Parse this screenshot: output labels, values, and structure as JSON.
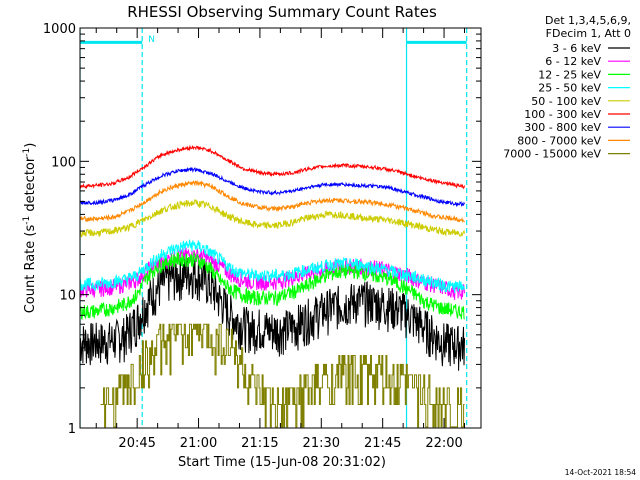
{
  "chart_data": {
    "type": "line",
    "title": "RHESSI Observing Summary Count Rates",
    "xlabel": "Start Time (15-Jun-08 20:31:02)",
    "ylabel_main": "Count Rate (s",
    "ylabel_sup1": "-1",
    "ylabel_mid": " detector",
    "ylabel_sup2": "-1",
    "ylabel_end": ")",
    "yscale": "log",
    "ylim": [
      1,
      1000
    ],
    "xlim_minutes": [
      0,
      98
    ],
    "x_ticks": [
      {
        "label": "20:45",
        "min": 13.97
      },
      {
        "label": "21:00",
        "min": 28.97
      },
      {
        "label": "21:15",
        "min": 43.97
      },
      {
        "label": "21:30",
        "min": 58.97
      },
      {
        "label": "21:45",
        "min": 73.97
      },
      {
        "label": "22:00",
        "min": 88.97
      }
    ],
    "y_ticks": [
      {
        "label": "1000",
        "v": 1000
      },
      {
        "label": "100",
        "v": 100
      },
      {
        "label": "10",
        "v": 10
      },
      {
        "label": "1",
        "v": 1
      }
    ],
    "legend_header": [
      "Det 1,3,4,5,6,9,",
      "FDecim 1, Att 0"
    ],
    "flag_label": "N",
    "timestamp": "14-Oct-2021 18:54",
    "night_intervals_minutes": [
      [
        0,
        15.2
      ],
      [
        79.8,
        94.5
      ]
    ],
    "flag_level": 780,
    "series": [
      {
        "name": "3 - 6 keV",
        "color": "#000000",
        "x": [
          0,
          4,
          8,
          11,
          14,
          16,
          18,
          20,
          22,
          24,
          26,
          28,
          30,
          32,
          34,
          36,
          38,
          40,
          42,
          44,
          46,
          48,
          50,
          52,
          54,
          56,
          58,
          60,
          62,
          64,
          66,
          68,
          70,
          72,
          74,
          76,
          78,
          80,
          82,
          84,
          86,
          88,
          90,
          92,
          94
        ],
        "y": [
          4.5,
          4.5,
          4.6,
          5.0,
          6.5,
          8.5,
          10.5,
          12,
          13.5,
          14,
          14.5,
          14.5,
          13.5,
          11.5,
          9.5,
          7.8,
          6.5,
          6.0,
          5.6,
          5.8,
          5.6,
          5.5,
          5.6,
          5.8,
          6.3,
          6.8,
          7.3,
          7.8,
          8.3,
          8.6,
          8.9,
          9.1,
          9.1,
          8.9,
          8.6,
          8.3,
          7.9,
          7.3,
          6.5,
          5.8,
          5.2,
          4.6,
          4.4,
          4.3,
          4.3
        ]
      },
      {
        "name": "6 - 12 keV",
        "color": "#ff00ff",
        "x": [
          0,
          4,
          8,
          11,
          14,
          16,
          18,
          20,
          22,
          24,
          26,
          28,
          30,
          32,
          34,
          36,
          38,
          40,
          42,
          44,
          46,
          48,
          50,
          52,
          54,
          56,
          58,
          60,
          62,
          64,
          66,
          68,
          70,
          72,
          74,
          76,
          78,
          80,
          82,
          84,
          86,
          88,
          90,
          92,
          94
        ],
        "y": [
          11,
          11,
          11.5,
          12,
          13,
          15,
          16.5,
          17.5,
          18.5,
          19.5,
          20,
          20,
          19.5,
          18,
          16.5,
          15,
          13.5,
          13,
          12.5,
          12.5,
          12.5,
          12.5,
          13,
          13.5,
          14,
          14.5,
          15,
          15.5,
          16,
          16.5,
          16.5,
          16.5,
          16,
          16,
          15.5,
          15,
          14.5,
          14,
          13,
          12.5,
          12,
          11.5,
          11,
          10.5,
          10.5
        ]
      },
      {
        "name": "12 - 25 keV",
        "color": "#00ff00",
        "x": [
          0,
          4,
          8,
          11,
          14,
          16,
          18,
          20,
          22,
          24,
          26,
          28,
          30,
          32,
          34,
          36,
          38,
          40,
          42,
          44,
          46,
          48,
          50,
          52,
          54,
          56,
          58,
          60,
          62,
          64,
          66,
          68,
          70,
          72,
          74,
          76,
          78,
          80,
          82,
          84,
          86,
          88,
          90,
          92,
          94
        ],
        "y": [
          7.5,
          7.5,
          8,
          8.5,
          10,
          13,
          15.5,
          17,
          18,
          18.5,
          18.5,
          18.5,
          17.5,
          15.5,
          13,
          11.5,
          10.5,
          10,
          9.5,
          9.5,
          9.5,
          9.5,
          10,
          10.5,
          11,
          12,
          13,
          14,
          14.5,
          15,
          15,
          15,
          14.5,
          14,
          13.5,
          13,
          12,
          11,
          10,
          9,
          8.5,
          8,
          7.8,
          7.5,
          7.5
        ]
      },
      {
        "name": "25 - 50 keV",
        "color": "#00ffff",
        "x": [
          0,
          4,
          8,
          11,
          14,
          16,
          18,
          20,
          22,
          24,
          26,
          28,
          30,
          32,
          34,
          36,
          38,
          40,
          42,
          44,
          46,
          48,
          50,
          52,
          54,
          56,
          58,
          60,
          62,
          64,
          66,
          68,
          70,
          72,
          74,
          76,
          78,
          80,
          82,
          84,
          86,
          88,
          90,
          92,
          94
        ],
        "y": [
          12,
          12,
          12.5,
          13,
          14,
          16,
          18,
          20,
          21.5,
          22.5,
          23.5,
          23.5,
          22.5,
          20.5,
          18.5,
          16.5,
          15,
          14.5,
          14,
          14,
          14,
          14,
          14,
          14.5,
          15,
          15.5,
          16,
          16.5,
          17,
          17,
          17,
          17,
          16.5,
          16,
          15.5,
          15,
          14.5,
          14,
          13.5,
          13,
          12.5,
          12,
          11.5,
          11.5,
          11.5
        ]
      },
      {
        "name": "50 - 100 keV",
        "color": "#cccc00",
        "x": [
          0,
          4,
          8,
          12,
          16,
          20,
          24,
          28,
          32,
          36,
          40,
          44,
          48,
          52,
          56,
          60,
          64,
          68,
          72,
          76,
          80,
          84,
          88,
          92,
          94
        ],
        "y": [
          29,
          29,
          30,
          32,
          37,
          43,
          47,
          49,
          46,
          39,
          35,
          33,
          33,
          35,
          38,
          40,
          40,
          38,
          37,
          36,
          34,
          32,
          30,
          29,
          29
        ]
      },
      {
        "name": "100 - 300 keV",
        "color": "#ff0000",
        "x": [
          0,
          4,
          8,
          12,
          16,
          20,
          24,
          28,
          32,
          36,
          40,
          44,
          48,
          52,
          56,
          60,
          64,
          68,
          72,
          76,
          80,
          84,
          88,
          92,
          94
        ],
        "y": [
          65,
          66,
          68,
          76,
          92,
          112,
          122,
          128,
          120,
          102,
          88,
          82,
          80,
          82,
          88,
          92,
          93,
          92,
          90,
          86,
          80,
          74,
          70,
          66,
          64
        ]
      },
      {
        "name": "300 - 800 keV",
        "color": "#0000ff",
        "x": [
          0,
          4,
          8,
          12,
          16,
          20,
          24,
          28,
          32,
          36,
          40,
          44,
          48,
          52,
          56,
          60,
          64,
          68,
          72,
          76,
          80,
          84,
          88,
          92,
          94
        ],
        "y": [
          49,
          49,
          51,
          56,
          67,
          78,
          85,
          87,
          81,
          71,
          63,
          59,
          58,
          60,
          64,
          67,
          67,
          66,
          65,
          63,
          58,
          54,
          50,
          48,
          48
        ]
      },
      {
        "name": "800 - 7000 keV",
        "color": "#ff8800",
        "x": [
          0,
          4,
          8,
          12,
          16,
          20,
          24,
          28,
          32,
          36,
          40,
          44,
          48,
          52,
          56,
          60,
          64,
          68,
          72,
          76,
          80,
          84,
          88,
          92,
          94
        ],
        "y": [
          37,
          37,
          38,
          42,
          50,
          60,
          66,
          69,
          65,
          55,
          48,
          45,
          44,
          46,
          49,
          51,
          51,
          50,
          49,
          47,
          44,
          41,
          38,
          37,
          36
        ]
      },
      {
        "name": "7000 - 15000 keV",
        "color": "#808000",
        "x": [
          5,
          8,
          10,
          12,
          14,
          16,
          18,
          20,
          22,
          24,
          26,
          28,
          30,
          32,
          34,
          36,
          38,
          40,
          42,
          44,
          46,
          48,
          50,
          52,
          54,
          56,
          58,
          60,
          62,
          64,
          66,
          68,
          70,
          72,
          74,
          76,
          78,
          80,
          82,
          84,
          86,
          88,
          90,
          92,
          94
        ],
        "y": [
          1.3,
          1.5,
          2.0,
          2.2,
          2.6,
          3.2,
          3.6,
          4.2,
          4.6,
          5.0,
          5.3,
          5.5,
          5.4,
          5.1,
          4.6,
          4.2,
          3.6,
          2.8,
          2.0,
          1.6,
          1.5,
          1.4,
          1.5,
          1.6,
          1.8,
          2.0,
          2.0,
          2.2,
          2.4,
          2.5,
          2.6,
          2.6,
          2.5,
          2.4,
          2.3,
          2.2,
          2.2,
          2.1,
          2.0,
          1.8,
          1.6,
          1.5,
          1.4,
          1.3,
          1.3
        ]
      }
    ]
  }
}
